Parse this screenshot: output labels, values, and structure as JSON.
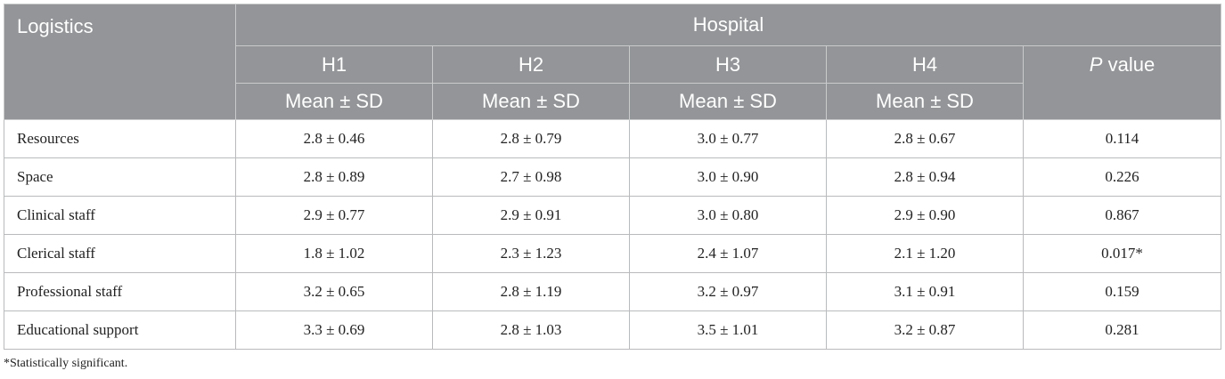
{
  "table": {
    "header": {
      "row_label": "Logistics",
      "group_label": "Hospital",
      "hospitals": [
        "H1",
        "H2",
        "H3",
        "H4"
      ],
      "stat_label": "Mean ± SD",
      "p_italic": "P",
      "p_rest": " value"
    },
    "rows": [
      {
        "label": "Resources",
        "values": [
          "2.8 ± 0.46",
          "2.8 ± 0.79",
          "3.0 ± 0.77",
          "2.8 ± 0.67"
        ],
        "p": "0.114"
      },
      {
        "label": "Space",
        "values": [
          "2.8 ± 0.89",
          "2.7 ± 0.98",
          "3.0 ± 0.90",
          "2.8 ± 0.94"
        ],
        "p": "0.226"
      },
      {
        "label": "Clinical staff",
        "values": [
          "2.9 ± 0.77",
          "2.9 ± 0.91",
          "3.0 ± 0.80",
          "2.9 ± 0.90"
        ],
        "p": "0.867"
      },
      {
        "label": "Clerical staff",
        "values": [
          "1.8 ± 1.02",
          "2.3 ± 1.23",
          "2.4 ± 1.07",
          "2.1 ± 1.20"
        ],
        "p": "0.017*"
      },
      {
        "label": "Professional staff",
        "values": [
          "3.2 ± 0.65",
          "2.8 ± 1.19",
          "3.2 ± 0.97",
          "3.1 ± 0.91"
        ],
        "p": "0.159"
      },
      {
        "label": "Educational support",
        "values": [
          "3.3 ± 0.69",
          "2.8 ± 1.03",
          "3.5 ± 1.01",
          "3.2 ± 0.87"
        ],
        "p": "0.281"
      }
    ]
  },
  "footnote": "*Statistically significant.",
  "colors": {
    "header_bg": "#939598",
    "header_text": "#ffffff",
    "border": "#b9babc"
  }
}
